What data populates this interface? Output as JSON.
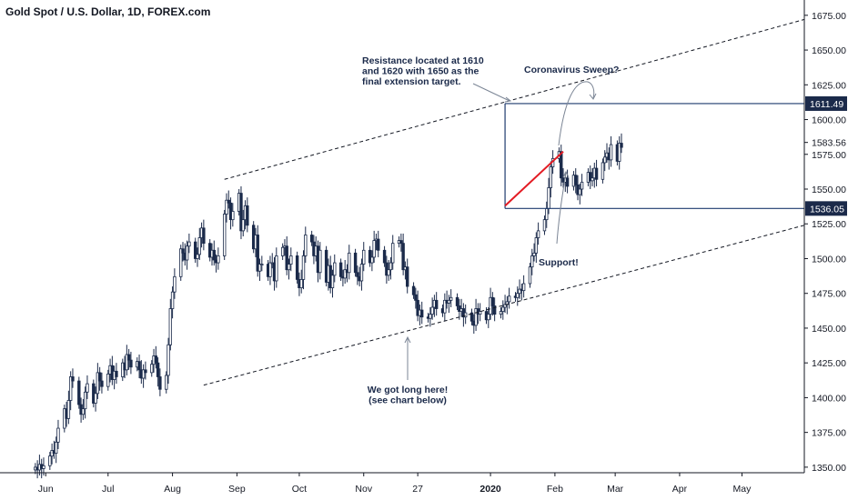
{
  "chart_data": {
    "type": "candlestick",
    "title": "Gold Spot / U.S. Dollar, 1D, FOREX.com",
    "y_ticks": [
      "1675.00",
      "1650.00",
      "1625.00",
      "1600.00",
      "1575.00",
      "1550.00",
      "1525.00",
      "1500.00",
      "1475.00",
      "1450.00",
      "1425.00",
      "1400.00",
      "1375.00",
      "1350.00"
    ],
    "y_range": [
      1346,
      1686
    ],
    "x_ticks": [
      "Jun",
      "Jul",
      "Aug",
      "Sep",
      "Oct",
      "Nov",
      "27",
      "2020",
      "Feb",
      "Mar",
      "Apr",
      "May"
    ],
    "x_tick_dates": [
      "2019-06-01",
      "2019-07-01",
      "2019-08-01",
      "2019-09-01",
      "2019-10-01",
      "2019-11-01",
      "2019-11-27",
      "2020-01-01",
      "2020-02-01",
      "2020-03-01",
      "2020-04-01",
      "2020-05-01"
    ],
    "x_range": [
      "2019-05-10",
      "2020-05-31"
    ],
    "price_labels": [
      {
        "value": 1611.49,
        "text": "1611.49",
        "highlight": true
      },
      {
        "value": 1583.56,
        "text": "1583.56",
        "highlight": false
      },
      {
        "value": 1536.05,
        "text": "1536.05",
        "highlight": true
      }
    ],
    "annotations": {
      "resistance": [
        "Resistance located at 1610",
        "and 1620 with 1650 as the",
        "final extension target."
      ],
      "sweep": [
        "Coronavirus Sweep?"
      ],
      "support": [
        "Support!"
      ],
      "long": [
        "We got long here!",
        "(see chart below)"
      ]
    },
    "levels": {
      "resistance": 1611.49,
      "support": 1536.05,
      "resistance_start": "2020-01-08"
    },
    "channel_upper": [
      {
        "date": "2019-08-26",
        "value": 1557
      },
      {
        "date": "2020-05-31",
        "value": 1672
      }
    ],
    "channel_lower": [
      {
        "date": "2019-08-16",
        "value": 1409
      },
      {
        "date": "2020-05-31",
        "value": 1524
      }
    ],
    "red_trend": [
      {
        "date": "2020-01-08",
        "value": 1538
      },
      {
        "date": "2020-02-05",
        "value": 1577
      }
    ],
    "candles_close": [
      [
        1350,
        1348,
        1352,
        1349,
        1351,
        1358,
        1362,
        1360,
        1368,
        1378,
        1392,
        1385,
        1398,
        1415,
        1412,
        1395,
        1388,
        1392,
        1404,
        1410,
        1396,
        1403,
        1418,
        1412,
        1408,
        1417,
        1423,
        1413,
        1419,
        1415,
        1425,
        1420,
        1431,
        1427,
        1422,
        1426,
        1420,
        1414,
        1420,
        1418,
        1424,
        1430,
        1425,
        1415,
        1406,
        1416,
        1438,
        1464,
        1476,
        1487,
        1507,
        1504,
        1499,
        1509,
        1512,
        1500,
        1503,
        1515,
        1522,
        1511,
        1501,
        1506,
        1499,
        1497,
        1502,
        1532,
        1542,
        1540,
        1528,
        1534,
        1547,
        1520,
        1528,
        1538,
        1524,
        1507,
        1517,
        1491,
        1496,
        1496,
        1487,
        1497,
        1497,
        1484,
        1502,
        1508,
        1509,
        1492,
        1496,
        1502,
        1485,
        1479,
        1485,
        1502,
        1517,
        1512,
        1502,
        1509,
        1490,
        1506,
        1483,
        1495,
        1479,
        1488,
        1497,
        1487,
        1486,
        1492,
        1490,
        1504,
        1490,
        1487,
        1484,
        1496,
        1506,
        1497,
        1501,
        1513,
        1514,
        1506,
        1497,
        1488,
        1492,
        1497,
        1511,
        1513,
        1511,
        1492,
        1494,
        1480,
        1474,
        1470,
        1459,
        1463,
        1458,
        1457,
        1460,
        1465,
        1470,
        1464,
        1461,
        1470,
        1468,
        1470,
        1472,
        1466,
        1462,
        1464,
        1458,
        1461,
        1455,
        1452,
        1464,
        1460,
        1462,
        1456,
        1460,
        1472,
        1466,
        1460,
        1462,
        1465,
        1467,
        1469,
        1473,
        1472,
        1475,
        1478,
        1477,
        1482,
        1494,
        1502,
        1504,
        1515,
        1520,
        1528,
        1536,
        1551,
        1566,
        1572,
        1577,
        1558,
        1555,
        1558,
        1552,
        1560,
        1553,
        1546,
        1550,
        1555,
        1562,
        1556,
        1558,
        1565,
        1557,
        1569,
        1573,
        1576,
        1571,
        1582,
        1570,
        1583,
        1580
      ]
    ]
  }
}
